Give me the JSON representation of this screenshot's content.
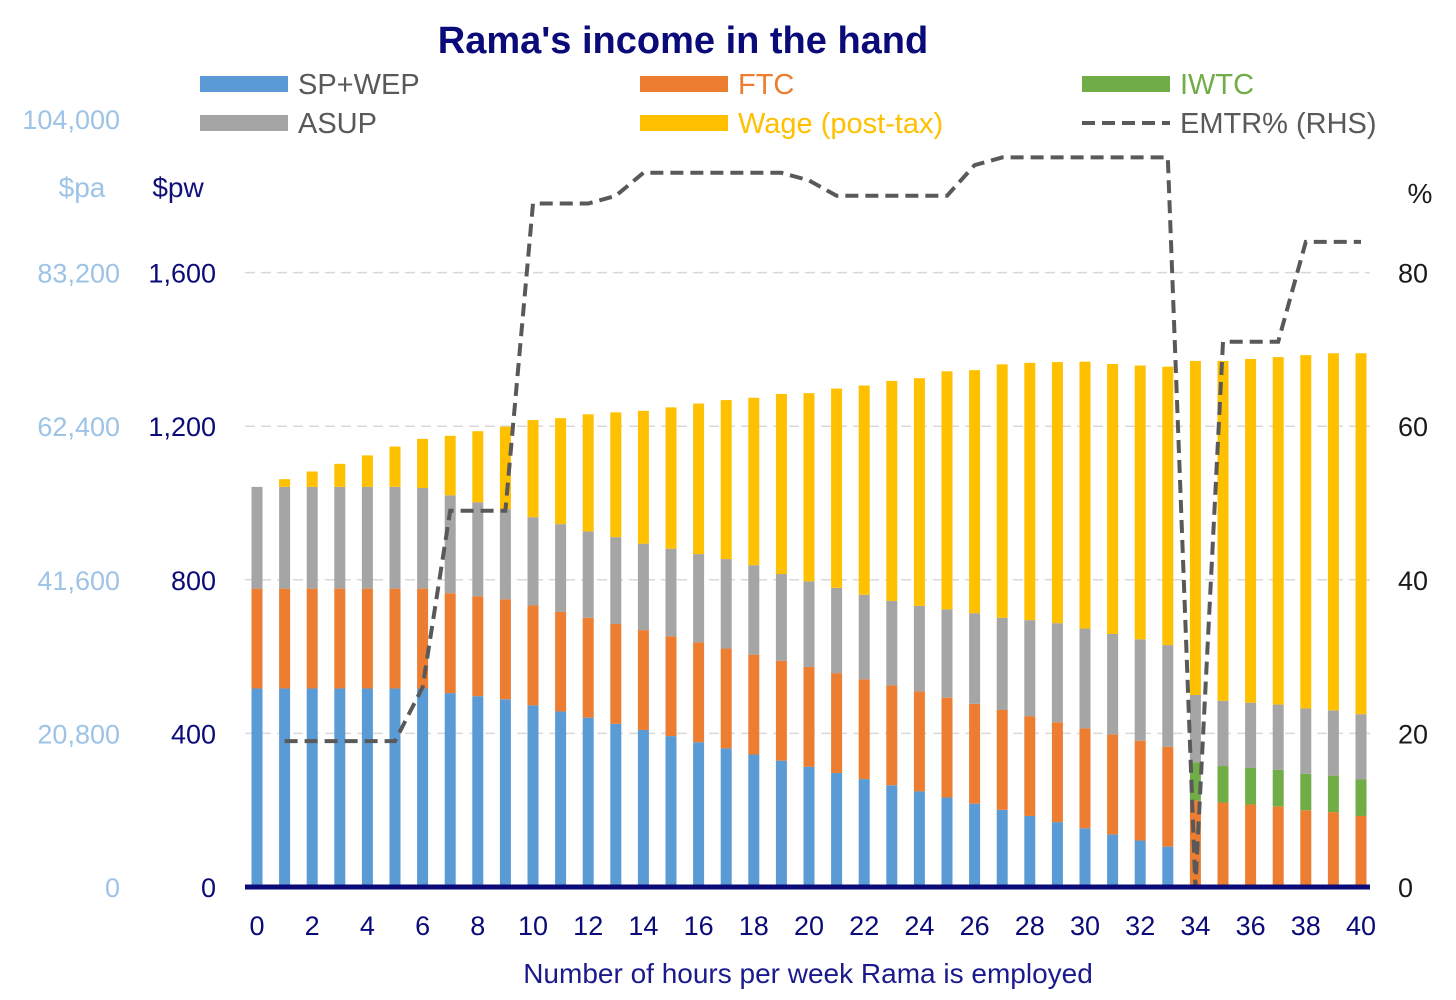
{
  "chart_data": {
    "type": "bar",
    "stacked": true,
    "title": "Rama's income in the hand",
    "xlabel": "Number of hours per week Rama is employed",
    "y_left_pa_unit": "$pa",
    "y_left_pw_unit": "$pw",
    "y_right_unit": "%",
    "ylim_pw": [
      0,
      2000
    ],
    "ylim_pct": [
      0,
      100
    ],
    "y_pa_ticks": [
      "0",
      "20,800",
      "41,600",
      "62,400",
      "83,200",
      "104,000"
    ],
    "y_pw_ticks": [
      "0",
      "400",
      "800",
      "1,200",
      "1,600"
    ],
    "y_pct_ticks": [
      "0",
      "20",
      "40",
      "60",
      "80"
    ],
    "x": [
      0,
      1,
      2,
      3,
      4,
      5,
      6,
      7,
      8,
      9,
      10,
      11,
      12,
      13,
      14,
      15,
      16,
      17,
      18,
      19,
      20,
      21,
      22,
      23,
      24,
      25,
      26,
      27,
      28,
      29,
      30,
      31,
      32,
      33,
      34,
      35,
      36,
      37,
      38,
      39,
      40
    ],
    "x_tick_labels": [
      "0",
      "2",
      "4",
      "6",
      "8",
      "10",
      "12",
      "14",
      "16",
      "18",
      "20",
      "22",
      "24",
      "26",
      "28",
      "30",
      "32",
      "34",
      "36",
      "38",
      "40"
    ],
    "grid": true,
    "legend_position": "top",
    "series": [
      {
        "name": "SP+WEP",
        "color": "#5b9bd5",
        "values": [
          517,
          517,
          517,
          517,
          517,
          517,
          517,
          505,
          497,
          489,
          473,
          457,
          441,
          425,
          409,
          393,
          377,
          361,
          345,
          329,
          313,
          297,
          281,
          265,
          249,
          233,
          217,
          201,
          185,
          169,
          153,
          137,
          121,
          105,
          0,
          0,
          0,
          0,
          0,
          0,
          0
        ]
      },
      {
        "name": "FTC",
        "color": "#ed7d31",
        "values": [
          260,
          260,
          260,
          260,
          260,
          260,
          260,
          260,
          260,
          260,
          260,
          260,
          260,
          260,
          260,
          260,
          260,
          260,
          260,
          260,
          260,
          260,
          260,
          260,
          260,
          260,
          260,
          260,
          260,
          260,
          260,
          260,
          260,
          260,
          225,
          220,
          215,
          210,
          200,
          195,
          185
        ]
      },
      {
        "name": "IWTC",
        "color": "#70ad47",
        "values": [
          0,
          0,
          0,
          0,
          0,
          0,
          0,
          0,
          0,
          0,
          0,
          0,
          0,
          0,
          0,
          0,
          0,
          0,
          0,
          0,
          0,
          0,
          0,
          0,
          0,
          0,
          0,
          0,
          0,
          0,
          0,
          0,
          0,
          0,
          100,
          95,
          95,
          95,
          95,
          95,
          95
        ]
      },
      {
        "name": "ASUP",
        "color": "#a5a5a5",
        "values": [
          265,
          265,
          265,
          265,
          265,
          265,
          262,
          255,
          245,
          235,
          230,
          228,
          225,
          226,
          225,
          228,
          230,
          233,
          233,
          226,
          223,
          222,
          220,
          220,
          223,
          230,
          236,
          240,
          250,
          258,
          260,
          262,
          264,
          265,
          175,
          170,
          170,
          170,
          170,
          170,
          170
        ]
      },
      {
        "name": "Wage (post-tax)",
        "color": "#ffc000",
        "values": [
          0,
          20,
          40,
          60,
          82,
          105,
          128,
          155,
          185,
          215,
          253,
          276,
          305,
          325,
          346,
          368,
          392,
          414,
          436,
          469,
          490,
          519,
          545,
          573,
          593,
          620,
          633,
          660,
          670,
          680,
          695,
          703,
          713,
          725,
          870,
          885,
          895,
          905,
          920,
          930,
          940
        ]
      },
      {
        "name": "EMTR% (RHS)",
        "color": "#595959",
        "line": true,
        "dashed": true,
        "values": [
          null,
          19,
          19,
          19,
          19,
          19,
          26,
          49,
          49,
          49,
          89,
          89,
          89,
          90,
          93,
          93,
          93,
          93,
          93,
          93,
          92,
          90,
          90,
          90,
          90,
          90,
          94,
          95,
          95,
          95,
          95,
          95,
          95,
          95,
          0,
          71,
          71,
          71,
          84,
          84,
          84
        ]
      }
    ]
  }
}
